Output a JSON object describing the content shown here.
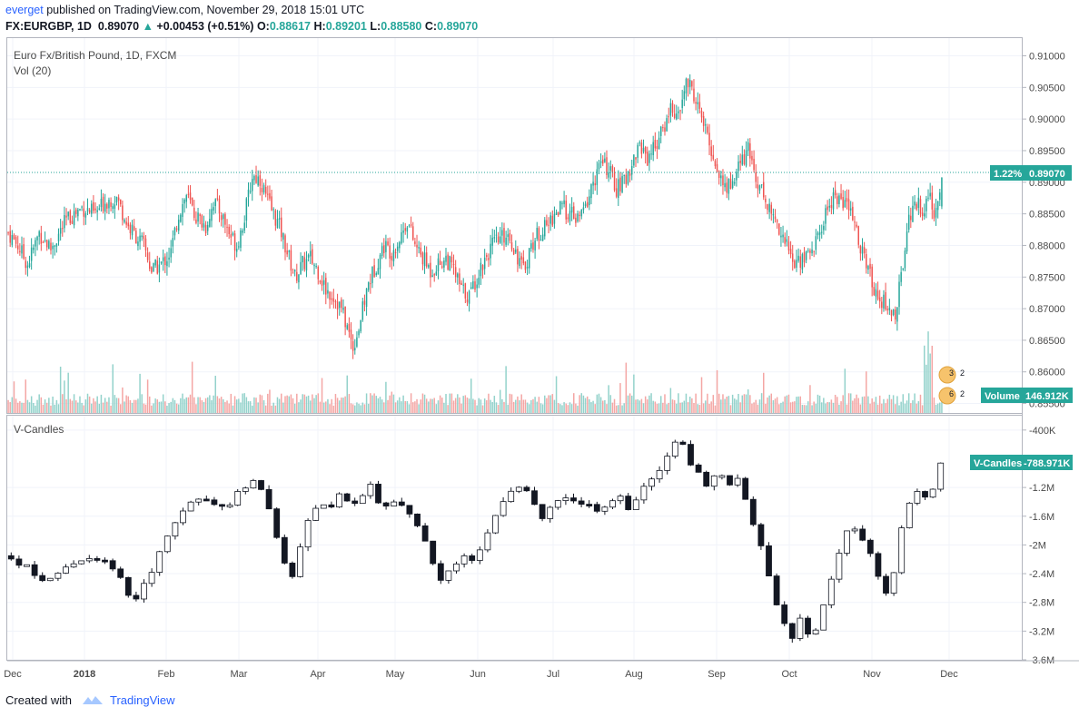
{
  "header": {
    "author": "everget",
    "published_text": "published on TradingView.com, November 29, 2018 15:01 UTC",
    "symbol": "FX:EURGBP, 1D",
    "last": "0.89070",
    "change": "+0.00453 (+0.51%)",
    "open_label": "O:",
    "open": "0.88617",
    "high_label": "H:",
    "high": "0.89201",
    "low_label": "L:",
    "low": "0.88580",
    "close_label": "C:",
    "close": "0.89070"
  },
  "main_pane": {
    "title": "Euro Fx/British Pound, 1D, FXCM",
    "vol_label": "Vol (20)",
    "price_badge_pct": "1.22%",
    "price_badge_value": "0.89070",
    "volume_badge_label": "Volume",
    "volume_badge_value": "146.912K",
    "event_badges": [
      "3",
      "2",
      "6",
      "2"
    ]
  },
  "lower_pane": {
    "title": "V-Candles",
    "badge_label": "V-Candles",
    "badge_value": "-788.971K"
  },
  "footer": {
    "created_with": "Created with",
    "brand": "TradingView"
  },
  "colors": {
    "up": "#26a69a",
    "down": "#ef5350",
    "up_volume": "#93d2cb",
    "down_volume": "#f4a6a4",
    "grid": "#f0f3fa",
    "accent": "#2962ff"
  },
  "chart_data": [
    {
      "type": "candlestick",
      "title": "Euro Fx/British Pound, 1D, FXCM",
      "yticks": [
        "0.91000",
        "0.90500",
        "0.90000",
        "0.89500",
        "0.89000",
        "0.88500",
        "0.88000",
        "0.87500",
        "0.87000",
        "0.86500",
        "0.86000",
        "0.85500"
      ],
      "ylim": [
        0.8535,
        0.9128
      ],
      "xticks": [
        "Dec",
        "2018",
        "Feb",
        "Mar",
        "Apr",
        "May",
        "Jun",
        "Jul",
        "Aug",
        "Sep",
        "Oct",
        "Nov",
        "Dec"
      ],
      "close_trajectory": [
        [
          0,
          0.882
        ],
        [
          5,
          0.88
        ],
        [
          10,
          0.877
        ],
        [
          16,
          0.882
        ],
        [
          22,
          0.8795
        ],
        [
          30,
          0.884
        ],
        [
          38,
          0.886
        ],
        [
          45,
          0.885
        ],
        [
          50,
          0.887
        ],
        [
          56,
          0.8875
        ],
        [
          62,
          0.883
        ],
        [
          66,
          0.8815
        ],
        [
          70,
          0.88
        ],
        [
          74,
          0.876
        ],
        [
          79,
          0.877
        ],
        [
          84,
          0.879
        ],
        [
          88,
          0.885
        ],
        [
          92,
          0.888
        ],
        [
          96,
          0.885
        ],
        [
          102,
          0.883
        ],
        [
          106,
          0.887
        ],
        [
          110,
          0.885
        ],
        [
          114,
          0.882
        ],
        [
          118,
          0.88
        ],
        [
          122,
          0.8845
        ],
        [
          126,
          0.891
        ],
        [
          130,
          0.8905
        ],
        [
          134,
          0.887
        ],
        [
          140,
          0.883
        ],
        [
          144,
          0.879
        ],
        [
          148,
          0.875
        ],
        [
          152,
          0.877
        ],
        [
          156,
          0.878
        ],
        [
          160,
          0.876
        ],
        [
          164,
          0.873
        ],
        [
          168,
          0.872
        ],
        [
          172,
          0.87
        ],
        [
          175,
          0.867
        ],
        [
          178,
          0.864
        ],
        [
          181,
          0.867
        ],
        [
          186,
          0.874
        ],
        [
          190,
          0.877
        ],
        [
          194,
          0.88
        ],
        [
          198,
          0.879
        ],
        [
          202,
          0.881
        ],
        [
          206,
          0.884
        ],
        [
          210,
          0.88
        ],
        [
          214,
          0.878
        ],
        [
          218,
          0.876
        ],
        [
          222,
          0.877
        ],
        [
          226,
          0.878
        ],
        [
          230,
          0.876
        ],
        [
          234,
          0.873
        ],
        [
          238,
          0.872
        ],
        [
          242,
          0.875
        ],
        [
          246,
          0.878
        ],
        [
          250,
          0.88
        ],
        [
          254,
          0.881
        ],
        [
          258,
          0.882
        ],
        [
          262,
          0.879
        ],
        [
          266,
          0.876
        ],
        [
          270,
          0.88
        ],
        [
          274,
          0.882
        ],
        [
          278,
          0.883
        ],
        [
          282,
          0.885
        ],
        [
          286,
          0.886
        ],
        [
          290,
          0.885
        ],
        [
          294,
          0.884
        ],
        [
          298,
          0.886
        ],
        [
          302,
          0.89
        ],
        [
          306,
          0.893
        ],
        [
          310,
          0.892
        ],
        [
          314,
          0.889
        ],
        [
          318,
          0.89
        ],
        [
          322,
          0.893
        ],
        [
          326,
          0.896
        ],
        [
          330,
          0.894
        ],
        [
          334,
          0.896
        ],
        [
          338,
          0.898
        ],
        [
          342,
          0.902
        ],
        [
          346,
          0.9
        ],
        [
          350,
          0.906
        ],
        [
          354,
          0.904
        ],
        [
          358,
          0.9
        ],
        [
          362,
          0.896
        ],
        [
          366,
          0.892
        ],
        [
          370,
          0.889
        ],
        [
          374,
          0.89
        ],
        [
          378,
          0.893
        ],
        [
          382,
          0.895
        ],
        [
          386,
          0.891
        ],
        [
          390,
          0.888
        ],
        [
          394,
          0.885
        ],
        [
          398,
          0.883
        ],
        [
          402,
          0.88
        ],
        [
          406,
          0.877
        ],
        [
          410,
          0.878
        ],
        [
          414,
          0.879
        ],
        [
          418,
          0.881
        ],
        [
          422,
          0.885
        ],
        [
          426,
          0.888
        ],
        [
          430,
          0.887
        ],
        [
          434,
          0.886
        ],
        [
          438,
          0.882
        ],
        [
          442,
          0.878
        ],
        [
          446,
          0.874
        ],
        [
          450,
          0.872
        ],
        [
          454,
          0.87
        ],
        [
          458,
          0.869
        ],
        [
          461,
          0.875
        ],
        [
          464,
          0.883
        ],
        [
          468,
          0.887
        ],
        [
          472,
          0.886
        ],
        [
          476,
          0.887
        ],
        [
          478,
          0.885
        ],
        [
          482,
          0.8907
        ]
      ]
    },
    {
      "type": "volume",
      "title": "Vol (20)",
      "last_value": "146.912K"
    },
    {
      "type": "v-candles",
      "title": "V-Candles",
      "yticks": [
        "-400K",
        "-1.2M",
        "-1.6M",
        "-2M",
        "-2.4M",
        "-2.8M",
        "-3.2M",
        "-3.6M"
      ],
      "ylim": [
        -3600000,
        -200000
      ],
      "last_value": "-788.971K",
      "trajectory": [
        [
          0,
          -2150000
        ],
        [
          10,
          -2300000
        ],
        [
          20,
          -2500000
        ],
        [
          30,
          -2350000
        ],
        [
          40,
          -2200000
        ],
        [
          50,
          -2250000
        ],
        [
          58,
          -2450000
        ],
        [
          62,
          -2650000
        ],
        [
          66,
          -2750000
        ],
        [
          72,
          -2500000
        ],
        [
          80,
          -2000000
        ],
        [
          86,
          -1700000
        ],
        [
          92,
          -1500000
        ],
        [
          100,
          -1300000
        ],
        [
          106,
          -1400000
        ],
        [
          112,
          -1500000
        ],
        [
          118,
          -1300000
        ],
        [
          126,
          -1100000
        ],
        [
          132,
          -1300000
        ],
        [
          138,
          -1800000
        ],
        [
          142,
          -2200000
        ],
        [
          146,
          -2500000
        ],
        [
          150,
          -2100000
        ],
        [
          154,
          -1700000
        ],
        [
          160,
          -1400000
        ],
        [
          166,
          -1500000
        ],
        [
          172,
          -1300000
        ],
        [
          178,
          -1500000
        ],
        [
          182,
          -1350000
        ],
        [
          186,
          -1100000
        ],
        [
          190,
          -1350000
        ],
        [
          196,
          -1500000
        ],
        [
          202,
          -1400000
        ],
        [
          208,
          -1550000
        ],
        [
          212,
          -1800000
        ],
        [
          216,
          -2000000
        ],
        [
          220,
          -2300000
        ],
        [
          224,
          -2500000
        ],
        [
          228,
          -2350000
        ],
        [
          232,
          -2300000
        ],
        [
          236,
          -2150000
        ],
        [
          240,
          -2200000
        ],
        [
          246,
          -1900000
        ],
        [
          250,
          -1700000
        ],
        [
          254,
          -1500000
        ],
        [
          258,
          -1300000
        ],
        [
          262,
          -1200000
        ],
        [
          268,
          -1250000
        ],
        [
          272,
          -1450000
        ],
        [
          276,
          -1600000
        ],
        [
          282,
          -1400000
        ],
        [
          288,
          -1300000
        ],
        [
          294,
          -1500000
        ],
        [
          298,
          -1350000
        ],
        [
          304,
          -1500000
        ],
        [
          310,
          -1400000
        ],
        [
          316,
          -1300000
        ],
        [
          320,
          -1500000
        ],
        [
          326,
          -1250000
        ],
        [
          332,
          -1100000
        ],
        [
          338,
          -900000
        ],
        [
          342,
          -650000
        ],
        [
          346,
          -450000
        ],
        [
          350,
          -800000
        ],
        [
          356,
          -950000
        ],
        [
          360,
          -1200000
        ],
        [
          366,
          -1000000
        ],
        [
          372,
          -1200000
        ],
        [
          376,
          -1050000
        ],
        [
          380,
          -1350000
        ],
        [
          384,
          -1700000
        ],
        [
          388,
          -2000000
        ],
        [
          392,
          -2400000
        ],
        [
          396,
          -2800000
        ],
        [
          400,
          -3100000
        ],
        [
          404,
          -3300000
        ],
        [
          408,
          -3000000
        ],
        [
          412,
          -3200000
        ],
        [
          414,
          -3450000
        ],
        [
          418,
          -3000000
        ],
        [
          422,
          -2700000
        ],
        [
          426,
          -2300000
        ],
        [
          430,
          -2000000
        ],
        [
          434,
          -1700000
        ],
        [
          438,
          -1850000
        ],
        [
          442,
          -2000000
        ],
        [
          446,
          -2200000
        ],
        [
          450,
          -2500000
        ],
        [
          454,
          -2750000
        ],
        [
          458,
          -2200000
        ],
        [
          462,
          -1600000
        ],
        [
          466,
          -1300000
        ],
        [
          470,
          -1200000
        ],
        [
          474,
          -1350000
        ],
        [
          478,
          -1200000
        ],
        [
          480,
          -1000000
        ],
        [
          482,
          -788971
        ]
      ]
    }
  ]
}
